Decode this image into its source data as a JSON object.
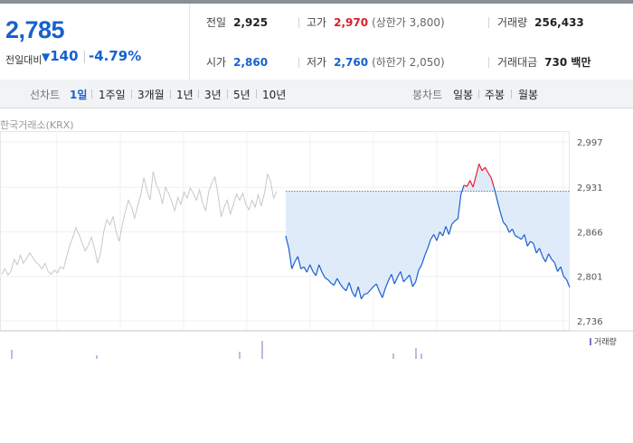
{
  "quote": {
    "price": "2,785",
    "prev_diff_label": "전일대비",
    "change_arrow": "▼",
    "change": "140",
    "change_rate": "-4.79%",
    "prev_close_label": "전일",
    "prev_close": "2,925",
    "high_label": "고가",
    "high": "2,970",
    "upper_limit": "(상한가 3,800)",
    "volume_label": "거래량",
    "volume": "256,433",
    "open_label": "시가",
    "open": "2,860",
    "low_label": "저가",
    "low": "2,760",
    "lower_limit": "(하한가 2,050)",
    "amount_label": "거래대금",
    "amount": "730 백만"
  },
  "toolbar": {
    "line_chart_label": "선차트",
    "ranges": [
      "1일",
      "1주일",
      "3개월",
      "1년",
      "3년",
      "5년",
      "10년"
    ],
    "active_range": "1일",
    "candle_chart_label": "봉차트",
    "candles": [
      "일봉",
      "주봉",
      "월봉"
    ]
  },
  "source": "한국거래소(KRX)",
  "volume_legend": "거래량",
  "colors": {
    "up": "#e8202c",
    "down": "#1a5fd0",
    "prev_day": "#c8c8c8",
    "fill": "#dde9f8",
    "vol": "#8b6fc4"
  },
  "chart_data": {
    "type": "line",
    "y_ticks": [
      "2,997",
      "2,931",
      "2,866",
      "2,801",
      "2,736"
    ],
    "ylim": [
      2736,
      2997
    ],
    "prev_close": 2925,
    "grid": true,
    "prev_day_series": [
      2804,
      2812,
      2803,
      2809,
      2826,
      2818,
      2832,
      2820,
      2827,
      2835,
      2829,
      2822,
      2818,
      2812,
      2820,
      2808,
      2804,
      2810,
      2806,
      2815,
      2812,
      2830,
      2846,
      2858,
      2872,
      2862,
      2850,
      2838,
      2846,
      2858,
      2842,
      2820,
      2836,
      2866,
      2884,
      2876,
      2888,
      2866,
      2852,
      2876,
      2896,
      2912,
      2902,
      2886,
      2904,
      2920,
      2945,
      2926,
      2912,
      2954,
      2935,
      2925,
      2907,
      2931,
      2922,
      2910,
      2897,
      2916,
      2906,
      2924,
      2915,
      2930,
      2922,
      2912,
      2927,
      2908,
      2897,
      2925,
      2937,
      2946,
      2920,
      2888,
      2902,
      2912,
      2892,
      2906,
      2921,
      2912,
      2922,
      2906,
      2898,
      2912,
      2902,
      2920,
      2904,
      2921,
      2950,
      2940,
      2915,
      2925
    ],
    "today_series": [
      2860,
      2842,
      2812,
      2822,
      2830,
      2812,
      2815,
      2807,
      2818,
      2808,
      2802,
      2818,
      2807,
      2799,
      2796,
      2791,
      2788,
      2798,
      2790,
      2784,
      2780,
      2792,
      2778,
      2771,
      2786,
      2768,
      2775,
      2776,
      2781,
      2786,
      2790,
      2779,
      2770,
      2784,
      2795,
      2804,
      2790,
      2800,
      2808,
      2793,
      2798,
      2803,
      2786,
      2793,
      2810,
      2818,
      2831,
      2842,
      2855,
      2862,
      2853,
      2866,
      2860,
      2874,
      2862,
      2877,
      2882,
      2885,
      2921,
      2934,
      2932,
      2941,
      2931,
      2948,
      2965,
      2955,
      2960,
      2952,
      2945,
      2930,
      2912,
      2895,
      2880,
      2875,
      2865,
      2870,
      2860,
      2858,
      2855,
      2862,
      2845,
      2852,
      2849,
      2835,
      2842,
      2830,
      2822,
      2834,
      2826,
      2821,
      2808,
      2815,
      2801,
      2796,
      2785
    ],
    "volume_marks": [
      [
        0.02,
        0.5
      ],
      [
        0.17,
        0.2
      ],
      [
        0.42,
        0.4
      ],
      [
        0.46,
        1.0
      ],
      [
        0.69,
        0.3
      ],
      [
        0.73,
        0.6
      ],
      [
        0.74,
        0.3
      ]
    ]
  }
}
